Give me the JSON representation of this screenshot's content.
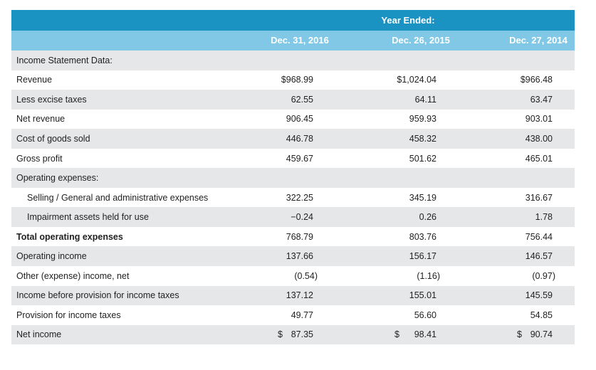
{
  "header": {
    "group_title": "Year Ended:",
    "columns": [
      "Dec. 31, 2016",
      "Dec. 26, 2015",
      "Dec. 27, 2014"
    ]
  },
  "rows": [
    {
      "label": "Income Statement Data:",
      "v1": "",
      "v2": "",
      "v3": ""
    },
    {
      "label": "Revenue",
      "v1": "$968.99",
      "v2": "$1,024.04",
      "v3": "$966.48"
    },
    {
      "label": "Less excise taxes",
      "v1": "62.55",
      "v2": "64.11",
      "v3": "63.47"
    },
    {
      "label": "Net revenue",
      "v1": "906.45",
      "v2": "959.93",
      "v3": "903.01"
    },
    {
      "label": "Cost of goods sold",
      "v1": "446.78",
      "v2": "458.32",
      "v3": "438.00"
    },
    {
      "label": "Gross profit",
      "v1": "459.67",
      "v2": "501.62",
      "v3": "465.01"
    },
    {
      "label": "Operating expenses:",
      "v1": "",
      "v2": "",
      "v3": ""
    },
    {
      "label": "Selling / General and administrative expenses",
      "v1": "322.25",
      "v2": "345.19",
      "v3": "316.67"
    },
    {
      "label": "Impairment assets held for use",
      "v1": "−0.24",
      "v2": "0.26",
      "v3": "1.78"
    },
    {
      "label": "Total operating expenses",
      "v1": "768.79",
      "v2": "803.76",
      "v3": "756.44"
    },
    {
      "label": "Operating income",
      "v1": "137.66",
      "v2": "156.17",
      "v3": "146.57"
    },
    {
      "label": "Other (expense) income, net",
      "v1": "(0.54)",
      "v2": "(1.16)",
      "v3": "(0.97)"
    },
    {
      "label": "Income before provision for income taxes",
      "v1": "137.12",
      "v2": "155.01",
      "v3": "145.59"
    },
    {
      "label": "Provision for income taxes",
      "v1": "49.77",
      "v2": "56.60",
      "v3": "54.85"
    }
  ],
  "net_income": {
    "label": "Net income",
    "currency": "$",
    "v1": "87.35",
    "v2": "98.41",
    "v3": "90.74"
  }
}
